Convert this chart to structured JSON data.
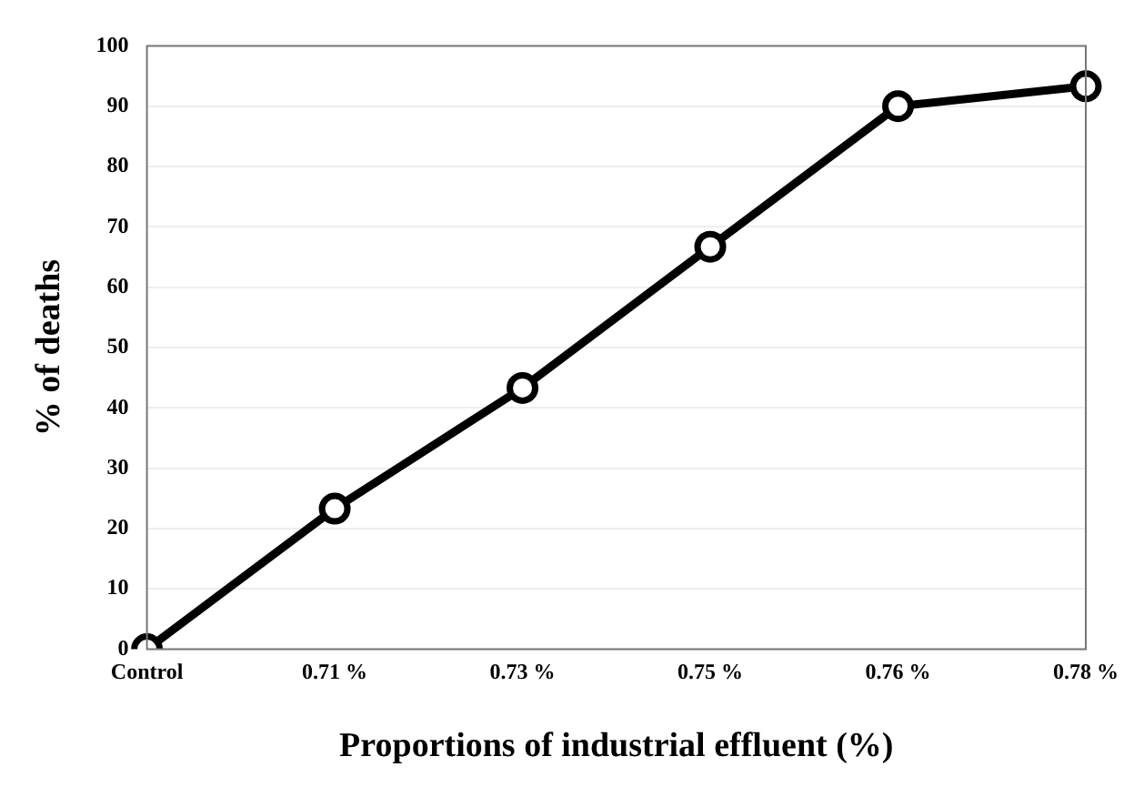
{
  "chart_data": {
    "type": "line",
    "xlabel": "Proportions of industrial effluent (%)",
    "ylabel": "% of deaths",
    "categories": [
      "Control",
      "0.71 %",
      "0.73 %",
      "0.75 %",
      "0.76 %",
      "0.78 %"
    ],
    "series": [
      {
        "color": "#000000",
        "values": [
          0,
          23.3,
          43.3,
          66.7,
          90,
          93.3
        ]
      }
    ],
    "ylim": [
      0,
      100
    ],
    "yticks": [
      0,
      10,
      20,
      30,
      40,
      50,
      60,
      70,
      80,
      90,
      100
    ],
    "grid": "y",
    "marker": "circle",
    "line_style": "solid"
  }
}
